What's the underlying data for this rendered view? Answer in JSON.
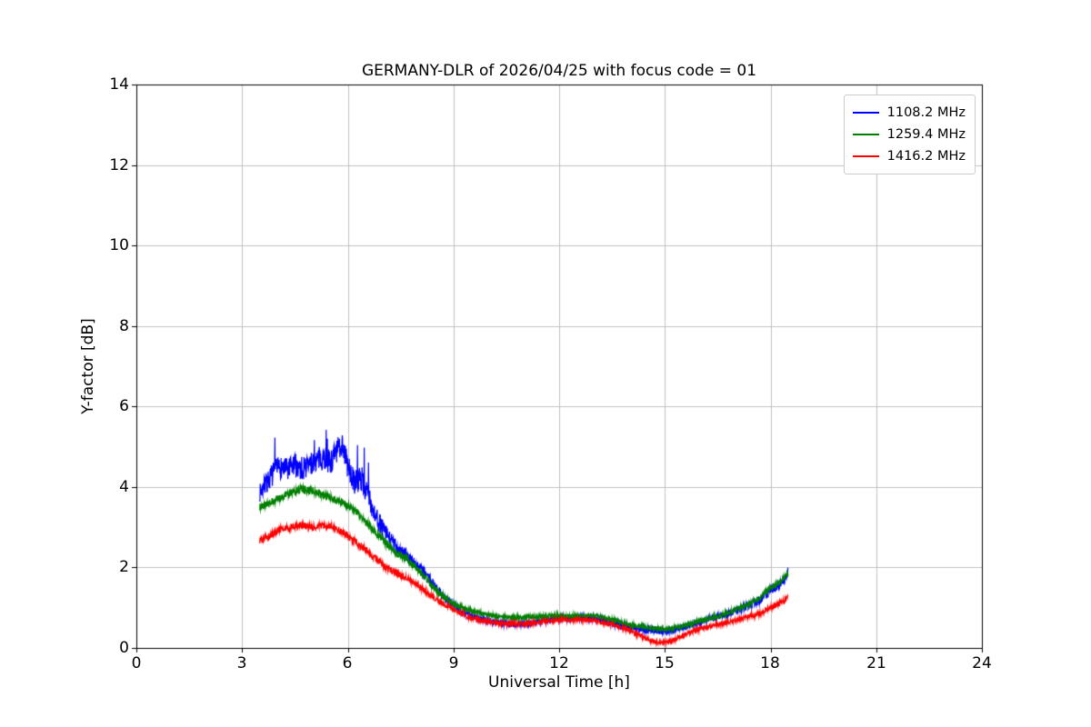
{
  "chart_data": {
    "type": "line",
    "title": "GERMANY-DLR of 2026/04/25 with focus code = 01",
    "xlabel": "Universal Time [h]",
    "ylabel": "Y-factor [dB]",
    "xlim": [
      0,
      24
    ],
    "ylim": [
      0,
      14
    ],
    "xticks": [
      0,
      3,
      6,
      9,
      12,
      15,
      18,
      21,
      24
    ],
    "yticks": [
      0,
      2,
      4,
      6,
      8,
      10,
      12,
      14
    ],
    "grid": true,
    "grid_color": "#c0c0c0",
    "legend_position": "upper right",
    "series": [
      {
        "name": "1108.2 MHz",
        "color": "#0000ff",
        "points": [
          [
            3.5,
            3.85
          ],
          [
            3.7,
            4.1
          ],
          [
            3.9,
            4.35
          ],
          [
            4.1,
            4.5
          ],
          [
            4.3,
            4.4
          ],
          [
            4.5,
            4.55
          ],
          [
            4.7,
            4.45
          ],
          [
            4.9,
            4.55
          ],
          [
            5.1,
            4.65
          ],
          [
            5.3,
            4.75
          ],
          [
            5.5,
            4.6
          ],
          [
            5.7,
            4.9
          ],
          [
            5.85,
            5.1
          ],
          [
            6.0,
            4.5
          ],
          [
            6.2,
            4.1
          ],
          [
            6.4,
            4.2
          ],
          [
            6.6,
            3.7
          ],
          [
            6.8,
            3.3
          ],
          [
            7.0,
            2.95
          ],
          [
            7.3,
            2.6
          ],
          [
            7.6,
            2.35
          ],
          [
            7.9,
            2.1
          ],
          [
            8.2,
            1.85
          ],
          [
            8.5,
            1.5
          ],
          [
            8.8,
            1.2
          ],
          [
            9.1,
            1.0
          ],
          [
            9.4,
            0.85
          ],
          [
            9.7,
            0.75
          ],
          [
            10.0,
            0.68
          ],
          [
            10.4,
            0.6
          ],
          [
            10.8,
            0.58
          ],
          [
            11.2,
            0.62
          ],
          [
            11.6,
            0.7
          ],
          [
            12.0,
            0.74
          ],
          [
            12.4,
            0.75
          ],
          [
            12.8,
            0.75
          ],
          [
            13.2,
            0.72
          ],
          [
            13.5,
            0.62
          ],
          [
            13.8,
            0.55
          ],
          [
            14.2,
            0.5
          ],
          [
            14.6,
            0.45
          ],
          [
            15.0,
            0.42
          ],
          [
            15.4,
            0.48
          ],
          [
            15.8,
            0.58
          ],
          [
            16.2,
            0.7
          ],
          [
            16.6,
            0.8
          ],
          [
            17.0,
            0.92
          ],
          [
            17.4,
            1.05
          ],
          [
            17.7,
            1.2
          ],
          [
            18.0,
            1.45
          ],
          [
            18.2,
            1.55
          ],
          [
            18.35,
            1.65
          ],
          [
            18.5,
            1.9
          ]
        ],
        "noise": [
          [
            3.5,
            0.22
          ],
          [
            4.0,
            0.3
          ],
          [
            5.0,
            0.3
          ],
          [
            6.0,
            0.32
          ],
          [
            6.6,
            0.3
          ],
          [
            7.2,
            0.18
          ],
          [
            8.0,
            0.14
          ],
          [
            9.0,
            0.1
          ],
          [
            10.0,
            0.07
          ],
          [
            13.0,
            0.07
          ],
          [
            13.8,
            0.1
          ],
          [
            14.5,
            0.1
          ],
          [
            15.5,
            0.08
          ],
          [
            16.5,
            0.08
          ],
          [
            17.5,
            0.1
          ],
          [
            18.0,
            0.13
          ],
          [
            18.5,
            0.1
          ]
        ],
        "spikes": {
          "range": [
            3.6,
            6.8
          ],
          "prob": 0.02,
          "scale": 2.4
        }
      },
      {
        "name": "1259.4 MHz",
        "color": "#008000",
        "points": [
          [
            3.5,
            3.5
          ],
          [
            3.8,
            3.6
          ],
          [
            4.1,
            3.75
          ],
          [
            4.4,
            3.85
          ],
          [
            4.7,
            3.95
          ],
          [
            5.0,
            3.9
          ],
          [
            5.3,
            3.8
          ],
          [
            5.6,
            3.7
          ],
          [
            5.9,
            3.6
          ],
          [
            6.2,
            3.4
          ],
          [
            6.5,
            3.15
          ],
          [
            6.8,
            2.85
          ],
          [
            7.1,
            2.6
          ],
          [
            7.4,
            2.35
          ],
          [
            7.7,
            2.2
          ],
          [
            8.0,
            1.95
          ],
          [
            8.3,
            1.65
          ],
          [
            8.6,
            1.35
          ],
          [
            9.0,
            1.1
          ],
          [
            9.4,
            0.95
          ],
          [
            9.8,
            0.85
          ],
          [
            10.2,
            0.8
          ],
          [
            10.6,
            0.76
          ],
          [
            11.0,
            0.76
          ],
          [
            11.4,
            0.78
          ],
          [
            11.8,
            0.8
          ],
          [
            12.2,
            0.8
          ],
          [
            12.6,
            0.8
          ],
          [
            13.0,
            0.8
          ],
          [
            13.4,
            0.74
          ],
          [
            13.8,
            0.62
          ],
          [
            14.2,
            0.55
          ],
          [
            14.6,
            0.5
          ],
          [
            15.0,
            0.47
          ],
          [
            15.4,
            0.52
          ],
          [
            15.8,
            0.62
          ],
          [
            16.2,
            0.72
          ],
          [
            16.6,
            0.82
          ],
          [
            17.0,
            0.95
          ],
          [
            17.4,
            1.1
          ],
          [
            17.7,
            1.25
          ],
          [
            18.0,
            1.5
          ],
          [
            18.2,
            1.6
          ],
          [
            18.35,
            1.7
          ],
          [
            18.5,
            1.85
          ]
        ],
        "noise": [
          [
            3.5,
            0.1
          ],
          [
            6.0,
            0.1
          ],
          [
            8.0,
            0.09
          ],
          [
            9.5,
            0.06
          ],
          [
            13.0,
            0.05
          ],
          [
            15.0,
            0.05
          ],
          [
            17.5,
            0.06
          ],
          [
            18.5,
            0.07
          ]
        ],
        "spikes": null
      },
      {
        "name": "1416.2 MHz",
        "color": "#ff0000",
        "points": [
          [
            3.5,
            2.65
          ],
          [
            3.8,
            2.8
          ],
          [
            4.1,
            2.95
          ],
          [
            4.4,
            3.0
          ],
          [
            4.7,
            3.05
          ],
          [
            5.0,
            3.0
          ],
          [
            5.3,
            3.05
          ],
          [
            5.6,
            3.0
          ],
          [
            5.9,
            2.85
          ],
          [
            6.2,
            2.65
          ],
          [
            6.5,
            2.45
          ],
          [
            6.8,
            2.2
          ],
          [
            7.1,
            2.0
          ],
          [
            7.4,
            1.85
          ],
          [
            7.7,
            1.7
          ],
          [
            8.0,
            1.55
          ],
          [
            8.3,
            1.35
          ],
          [
            8.6,
            1.15
          ],
          [
            9.0,
            0.95
          ],
          [
            9.4,
            0.78
          ],
          [
            9.8,
            0.68
          ],
          [
            10.2,
            0.62
          ],
          [
            10.6,
            0.6
          ],
          [
            11.0,
            0.6
          ],
          [
            11.4,
            0.63
          ],
          [
            11.8,
            0.68
          ],
          [
            12.2,
            0.7
          ],
          [
            12.6,
            0.7
          ],
          [
            13.0,
            0.68
          ],
          [
            13.4,
            0.6
          ],
          [
            13.8,
            0.5
          ],
          [
            14.2,
            0.35
          ],
          [
            14.6,
            0.18
          ],
          [
            14.9,
            0.12
          ],
          [
            15.2,
            0.18
          ],
          [
            15.5,
            0.3
          ],
          [
            15.8,
            0.42
          ],
          [
            16.2,
            0.52
          ],
          [
            16.6,
            0.6
          ],
          [
            17.0,
            0.68
          ],
          [
            17.4,
            0.78
          ],
          [
            17.7,
            0.85
          ],
          [
            18.0,
            1.0
          ],
          [
            18.2,
            1.08
          ],
          [
            18.35,
            1.15
          ],
          [
            18.5,
            1.25
          ]
        ],
        "noise": [
          [
            3.5,
            0.09
          ],
          [
            6.0,
            0.09
          ],
          [
            8.0,
            0.08
          ],
          [
            9.5,
            0.06
          ],
          [
            13.0,
            0.05
          ],
          [
            15.0,
            0.05
          ],
          [
            17.5,
            0.06
          ],
          [
            18.5,
            0.07
          ]
        ],
        "spikes": null
      }
    ]
  }
}
